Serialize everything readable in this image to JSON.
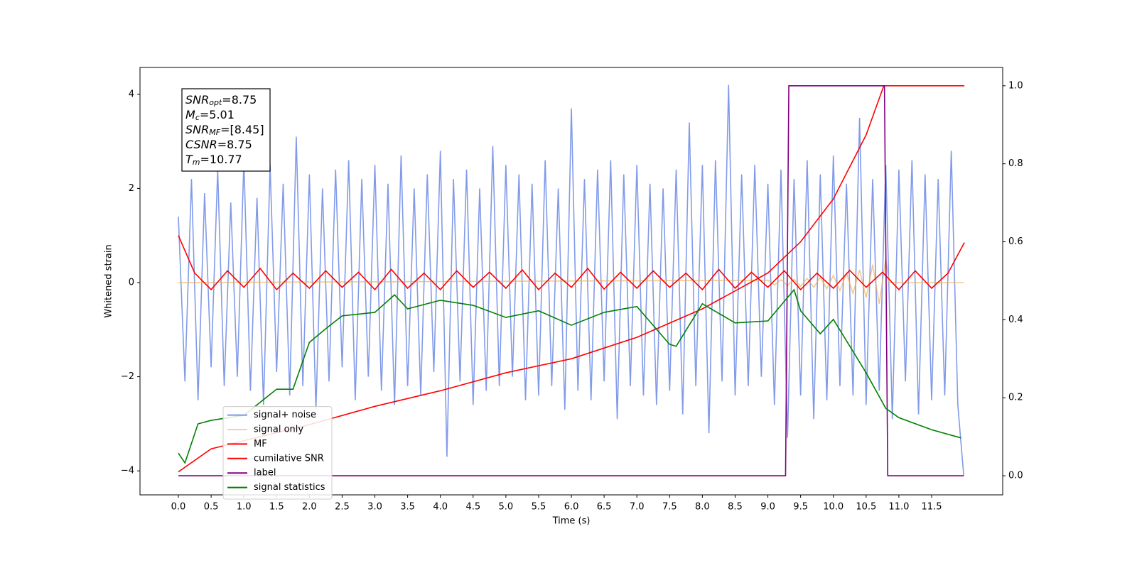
{
  "chart_data": {
    "type": "line",
    "xlabel": "Time (s)",
    "ylabel": "Whitened strain",
    "xlim": [
      -0.586,
      12.585
    ],
    "ylim": [
      -4.51,
      4.57
    ],
    "y2lim": [
      -0.049,
      1.047
    ],
    "xticks": [
      {
        "value": 0,
        "label": "0.0"
      },
      0.5,
      {
        "value": 1,
        "label": "1.0"
      },
      1.5,
      {
        "value": 2,
        "label": "2.0"
      },
      2.5,
      {
        "value": 3,
        "label": "3.0"
      },
      3.5,
      {
        "value": 4,
        "label": "4.0"
      },
      4.5,
      {
        "value": 5,
        "label": "5.0"
      },
      5.5,
      {
        "value": 6,
        "label": "6.0"
      },
      6.5,
      {
        "value": 7,
        "label": "7.0"
      },
      7.5,
      {
        "value": 8,
        "label": "8.0"
      },
      8.5,
      {
        "value": 9,
        "label": "9.0"
      },
      9.5,
      {
        "value": 10,
        "label": "10.0"
      },
      10.5,
      {
        "value": 11,
        "label": "11.0"
      },
      11.5
    ],
    "yticks": [
      {
        "value": -4,
        "label": "−4"
      },
      {
        "value": -2,
        "label": "−2"
      },
      0,
      2,
      4
    ],
    "y2ticks": [
      {
        "value": 0,
        "label": "0.0"
      },
      0.2,
      0.4,
      0.6,
      0.8,
      {
        "value": 1,
        "label": "1.0"
      }
    ],
    "grid": false,
    "legend": "lower left",
    "annotation": [
      {
        "text": "SNR",
        "sub": "opt",
        "value": "=8.75"
      },
      {
        "text": "M",
        "sub": "c",
        "value": "=5.01"
      },
      {
        "text": "SNR",
        "sub": "MF",
        "value": "=[8.45]"
      },
      {
        "text": "CSNR",
        "value": "=8.75"
      },
      {
        "text": "T",
        "sub": "m",
        "value": "=10.77"
      }
    ],
    "series": [
      {
        "name": "signal+ noise",
        "color": "#7b96e8",
        "axis": "y",
        "x": [
          0,
          0.1,
          0.2,
          0.3,
          0.4,
          0.5,
          0.6,
          0.7,
          0.8,
          0.9,
          1,
          1.1,
          1.2,
          1.3,
          1.4,
          1.5,
          1.6,
          1.7,
          1.8,
          1.9,
          2,
          2.1,
          2.2,
          2.3,
          2.4,
          2.5,
          2.6,
          2.7,
          2.8,
          2.9,
          3,
          3.1,
          3.2,
          3.3,
          3.4,
          3.5,
          3.6,
          3.7,
          3.8,
          3.9,
          4,
          4.1,
          4.2,
          4.3,
          4.4,
          4.5,
          4.6,
          4.7,
          4.8,
          4.9,
          5,
          5.1,
          5.2,
          5.3,
          5.4,
          5.5,
          5.6,
          5.7,
          5.8,
          5.9,
          6,
          6.1,
          6.2,
          6.3,
          6.4,
          6.5,
          6.6,
          6.7,
          6.8,
          6.9,
          7,
          7.1,
          7.2,
          7.3,
          7.4,
          7.5,
          7.6,
          7.7,
          7.8,
          7.9,
          8,
          8.1,
          8.2,
          8.3,
          8.4,
          8.5,
          8.6,
          8.7,
          8.8,
          8.9,
          9,
          9.1,
          9.2,
          9.3,
          9.4,
          9.5,
          9.6,
          9.7,
          9.8,
          9.9,
          10,
          10.1,
          10.2,
          10.3,
          10.4,
          10.5,
          10.6,
          10.7,
          10.8,
          10.9,
          11,
          11.1,
          11.2,
          11.3,
          11.4,
          11.5,
          11.6,
          11.7,
          11.8,
          11.9,
          11.99
        ],
        "values": [
          1.4,
          -2.1,
          2.2,
          -2.5,
          1.9,
          -1.8,
          2.4,
          -2.2,
          1.7,
          -2.0,
          2.6,
          -2.3,
          1.8,
          -2.6,
          2.5,
          -1.9,
          2.1,
          -2.4,
          3.1,
          -2.2,
          2.3,
          -2.7,
          2.0,
          -2.1,
          2.4,
          -1.8,
          2.6,
          -2.5,
          2.2,
          -2.0,
          2.5,
          -2.3,
          2.1,
          -2.6,
          2.7,
          -2.2,
          2.0,
          -2.4,
          2.3,
          -1.9,
          2.8,
          -3.7,
          2.2,
          -2.1,
          2.4,
          -2.6,
          2.0,
          -2.3,
          2.9,
          -2.2,
          2.5,
          -2.0,
          2.3,
          -2.5,
          2.1,
          -2.4,
          2.6,
          -2.2,
          2.0,
          -2.7,
          3.7,
          -2.3,
          2.2,
          -2.5,
          2.4,
          -2.1,
          2.6,
          -2.9,
          2.3,
          -2.2,
          2.5,
          -2.4,
          2.1,
          -2.6,
          2.0,
          -2.3,
          2.4,
          -2.8,
          3.4,
          -2.2,
          2.5,
          -3.2,
          2.6,
          -2.1,
          4.2,
          -2.4,
          2.3,
          -2.2,
          2.5,
          -2.0,
          2.1,
          -2.6,
          2.4,
          -3.3,
          2.2,
          -2.4,
          2.6,
          -2.9,
          2.3,
          -2.5,
          2.7,
          -2.2,
          2.1,
          -2.4,
          3.5,
          -2.6,
          2.2,
          -2.3,
          2.5,
          -2.9,
          2.4,
          -2.1,
          2.6,
          -2.8,
          2.3,
          -2.5,
          2.2,
          -2.4,
          2.8,
          -2.6,
          -4.1
        ]
      },
      {
        "name": "signal only",
        "color": "#f0b060",
        "axis": "y",
        "x": [
          0,
          9.0,
          9.1,
          9.2,
          9.3,
          9.4,
          9.5,
          9.6,
          9.7,
          9.8,
          9.9,
          10.0,
          10.1,
          10.2,
          10.3,
          10.4,
          10.5,
          10.6,
          10.7,
          10.8,
          10.85,
          11.99
        ],
        "values": [
          0,
          0.05,
          -0.05,
          0.06,
          -0.06,
          0.07,
          -0.08,
          0.09,
          -0.1,
          0.11,
          -0.13,
          0.15,
          -0.17,
          0.2,
          -0.23,
          0.27,
          -0.32,
          0.38,
          -0.45,
          0.5,
          0,
          0
        ]
      },
      {
        "name": "MF",
        "color": "#ff0000",
        "axis": "y",
        "x": [
          0,
          0.25,
          0.5,
          0.75,
          1,
          1.25,
          1.5,
          1.75,
          2,
          2.25,
          2.5,
          2.75,
          3,
          3.25,
          3.5,
          3.75,
          4,
          4.25,
          4.5,
          4.75,
          5,
          5.25,
          5.5,
          5.75,
          6,
          6.25,
          6.5,
          6.75,
          7,
          7.25,
          7.5,
          7.75,
          8,
          8.25,
          8.5,
          8.75,
          9,
          9.25,
          9.5,
          9.75,
          10,
          10.25,
          10.5,
          10.75,
          11,
          11.25,
          11.5,
          11.75,
          12
        ],
        "values": [
          1.0,
          0.2,
          -0.15,
          0.25,
          -0.1,
          0.3,
          -0.15,
          0.2,
          -0.12,
          0.25,
          -0.1,
          0.22,
          -0.15,
          0.28,
          -0.12,
          0.2,
          -0.15,
          0.25,
          -0.1,
          0.22,
          -0.12,
          0.27,
          -0.15,
          0.2,
          -0.1,
          0.3,
          -0.14,
          0.22,
          -0.12,
          0.25,
          -0.1,
          0.2,
          -0.15,
          0.28,
          -0.12,
          0.22,
          -0.1,
          0.25,
          -0.15,
          0.2,
          -0.12,
          0.26,
          -0.1,
          0.22,
          -0.15,
          0.25,
          -0.12,
          0.2,
          0.85
        ]
      },
      {
        "name": "cumilative SNR",
        "color": "#ff0000",
        "axis": "y2",
        "x": [
          0,
          0.5,
          1,
          2,
          3,
          4,
          5,
          6,
          7,
          8,
          9,
          9.5,
          10,
          10.5,
          10.77,
          12
        ],
        "values": [
          0.01,
          0.069,
          0.09,
          0.131,
          0.178,
          0.218,
          0.264,
          0.3,
          0.355,
          0.428,
          0.52,
          0.6,
          0.71,
          0.874,
          1.0,
          1.0
        ]
      },
      {
        "name": "label",
        "color": "#800080",
        "axis": "y2",
        "x": [
          0,
          9.27,
          9.32,
          10.78,
          10.83,
          11.99
        ],
        "values": [
          0,
          0,
          1,
          1,
          0,
          0
        ]
      },
      {
        "name": "signal statistics",
        "color": "#008000",
        "axis": "y2",
        "x": [
          0,
          0.1,
          0.3,
          0.5,
          1.0,
          1.5,
          1.75,
          2.0,
          2.25,
          2.5,
          3.0,
          3.3,
          3.5,
          4.0,
          4.5,
          5.0,
          5.5,
          6.0,
          6.5,
          7.0,
          7.5,
          7.6,
          8.0,
          8.5,
          9.0,
          9.4,
          9.5,
          9.8,
          10.0,
          10.5,
          10.8,
          11.0,
          11.5,
          11.95
        ],
        "values": [
          0.058,
          0.033,
          0.133,
          0.142,
          0.155,
          0.222,
          0.222,
          0.342,
          0.377,
          0.41,
          0.419,
          0.464,
          0.428,
          0.45,
          0.437,
          0.406,
          0.423,
          0.386,
          0.419,
          0.434,
          0.337,
          0.332,
          0.441,
          0.392,
          0.397,
          0.477,
          0.423,
          0.364,
          0.401,
          0.264,
          0.173,
          0.149,
          0.118,
          0.097
        ]
      }
    ]
  }
}
